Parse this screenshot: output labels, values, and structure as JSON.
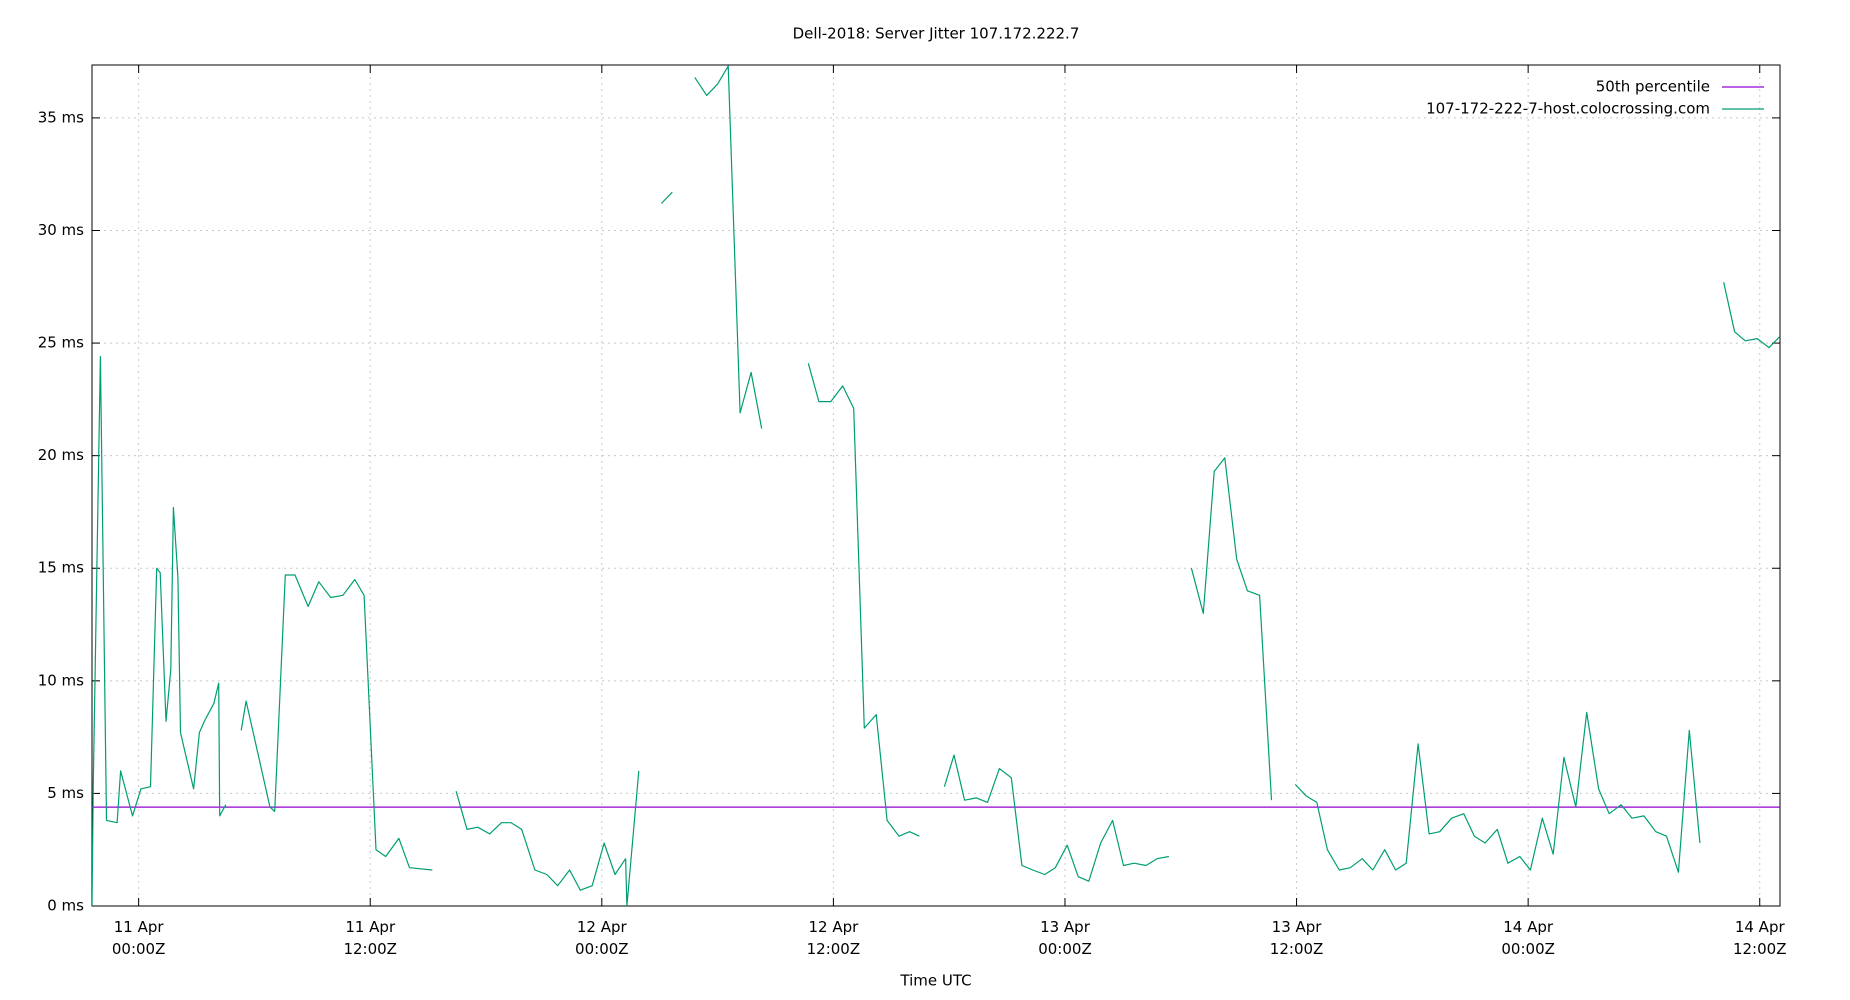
{
  "chart_data": {
    "type": "line",
    "title": "Dell-2018: Server Jitter 107.172.222.7",
    "x_label": "Time UTC",
    "xlim": [
      "10 Apr 21:35",
      "14 Apr 13:03"
    ],
    "xticks": [
      {
        "value": "11 Apr 00:00",
        "label": "11 Apr 00:00Z"
      },
      {
        "value": "11 Apr 12:00",
        "label": "11 Apr 12:00Z"
      },
      {
        "value": "12 Apr 00:00",
        "label": "12 Apr 00:00Z"
      },
      {
        "value": "12 Apr 12:00",
        "label": "12 Apr 12:00Z"
      },
      {
        "value": "13 Apr 00:00",
        "label": "13 Apr 00:00Z"
      },
      {
        "value": "13 Apr 12:00",
        "label": "13 Apr 12:00Z"
      },
      {
        "value": "14 Apr 00:00",
        "label": "14 Apr 00:00Z"
      },
      {
        "value": "14 Apr 12:00",
        "label": "14 Apr 12:00Z"
      }
    ],
    "ylim": [
      0,
      37.35
    ],
    "yticks": [
      {
        "value": 0,
        "label": "0 ms"
      },
      {
        "value": 5,
        "label": "5 ms"
      },
      {
        "value": 10,
        "label": "10 ms"
      },
      {
        "value": 15,
        "label": "15 ms"
      },
      {
        "value": 20,
        "label": "20 ms"
      },
      {
        "value": 25,
        "label": "25 ms"
      },
      {
        "value": 30,
        "label": "30 ms"
      },
      {
        "value": 35,
        "label": "35 ms"
      }
    ],
    "grid": true,
    "legend": "top-right",
    "reference_line": {
      "name": "50th percentile",
      "value": 4.39,
      "color": "#9400d3"
    },
    "series": [
      {
        "name": "107-172-222-7-host.colocrossing.com",
        "color": "#009e73",
        "x": [
          "10 Apr 21:35",
          "10 Apr 21:39",
          "10 Apr 22:01",
          "10 Apr 22:20",
          "10 Apr 22:53",
          "10 Apr 23:04",
          "10 Apr 23:41",
          "11 Apr 00:07",
          "11 Apr 00:37",
          "11 Apr 00:56",
          "11 Apr 01:07",
          "11 Apr 01:25",
          "11 Apr 01:40",
          "11 Apr 01:48",
          "11 Apr 02:02",
          "11 Apr 02:10",
          "11 Apr 02:51",
          "11 Apr 03:09",
          "11 Apr 03:24",
          "11 Apr 03:54",
          "11 Apr 04:09",
          "11 Apr 04:12",
          "11 Apr 04:31",
          null,
          "11 Apr 05:19",
          "11 Apr 05:34",
          "11 Apr 06:15",
          "11 Apr 06:48",
          "11 Apr 07:03",
          "11 Apr 07:36",
          "11 Apr 08:06",
          "11 Apr 08:47",
          "11 Apr 09:20",
          "11 Apr 09:57",
          "11 Apr 10:35",
          "11 Apr 11:12",
          "11 Apr 11:41",
          "11 Apr 12:18",
          "11 Apr 12:48",
          "11 Apr 13:29",
          "11 Apr 14:02",
          "11 Apr 15:13",
          null,
          "11 Apr 16:27",
          "11 Apr 17:01",
          "11 Apr 17:34",
          "11 Apr 18:11",
          "11 Apr 18:48",
          "11 Apr 19:18",
          "11 Apr 19:51",
          "11 Apr 20:32",
          "11 Apr 21:09",
          "11 Apr 21:43",
          "11 Apr 22:20",
          "11 Apr 22:53",
          "11 Apr 23:30",
          "12 Apr 00:07",
          "12 Apr 00:41",
          "12 Apr 01:14",
          "12 Apr 01:18",
          "12 Apr 01:55",
          null,
          "12 Apr 03:05",
          "12 Apr 03:39",
          null,
          "12 Apr 04:49",
          "12 Apr 05:26",
          "12 Apr 06:00",
          "12 Apr 06:33",
          "12 Apr 07:10",
          "12 Apr 07:44",
          "12 Apr 08:17",
          null,
          "12 Apr 10:42",
          "12 Apr 11:15",
          "12 Apr 11:52",
          "12 Apr 12:29",
          "12 Apr 13:03",
          "12 Apr 13:36",
          "12 Apr 14:13",
          "12 Apr 14:47",
          "12 Apr 15:24",
          "12 Apr 15:57",
          "12 Apr 16:27",
          null,
          "12 Apr 17:45",
          "12 Apr 18:15",
          "12 Apr 18:48",
          "12 Apr 19:25",
          "12 Apr 19:59",
          "12 Apr 20:36",
          "12 Apr 21:13",
          "12 Apr 21:46",
          "12 Apr 22:20",
          "12 Apr 22:57",
          "12 Apr 23:30",
          "13 Apr 00:07",
          "13 Apr 00:41",
          "13 Apr 01:14",
          "13 Apr 01:51",
          "13 Apr 02:28",
          "13 Apr 03:02",
          "13 Apr 03:35",
          "13 Apr 04:12",
          "13 Apr 04:46",
          "13 Apr 05:23",
          null,
          "13 Apr 06:33",
          "13 Apr 07:10",
          "13 Apr 07:44",
          "13 Apr 08:17",
          "13 Apr 08:54",
          "13 Apr 09:27",
          "13 Apr 10:05",
          "13 Apr 10:42",
          null,
          "13 Apr 11:56",
          "13 Apr 12:29",
          "13 Apr 13:03",
          "13 Apr 13:36",
          "13 Apr 14:13",
          "13 Apr 14:47",
          "13 Apr 15:24",
          "13 Apr 15:57",
          "13 Apr 16:34",
          "13 Apr 17:08",
          "13 Apr 17:41",
          "13 Apr 18:18",
          "13 Apr 18:52",
          "13 Apr 19:25",
          "13 Apr 20:02",
          "13 Apr 20:40",
          "13 Apr 21:13",
          "13 Apr 21:46",
          "13 Apr 22:24",
          "13 Apr 22:57",
          "13 Apr 23:34",
          "14 Apr 00:07",
          "14 Apr 00:44",
          "14 Apr 01:18",
          "14 Apr 01:51",
          "14 Apr 02:28",
          "14 Apr 03:02",
          "14 Apr 03:39",
          "14 Apr 04:12",
          "14 Apr 04:49",
          "14 Apr 05:23",
          "14 Apr 06:00",
          "14 Apr 06:37",
          "14 Apr 07:10",
          "14 Apr 07:47",
          "14 Apr 08:21",
          "14 Apr 08:54",
          null,
          "14 Apr 10:08",
          "14 Apr 10:42",
          "14 Apr 11:15",
          "14 Apr 11:52",
          "14 Apr 12:29",
          "14 Apr 13:03"
        ],
        "values": [
          0,
          5.5,
          24.4,
          3.8,
          3.7,
          6.0,
          4.0,
          5.2,
          5.3,
          15.0,
          14.8,
          8.2,
          10.5,
          17.7,
          14.6,
          7.7,
          5.2,
          7.7,
          8.2,
          9.0,
          9.9,
          4.0,
          4.5,
          null,
          7.8,
          9.1,
          6.5,
          4.4,
          4.2,
          14.7,
          14.7,
          13.3,
          14.4,
          13.7,
          13.8,
          14.5,
          13.8,
          2.5,
          2.2,
          3.0,
          1.7,
          1.6,
          null,
          5.1,
          3.4,
          3.5,
          3.2,
          3.7,
          3.7,
          3.4,
          1.6,
          1.4,
          0.9,
          1.6,
          0.7,
          0.9,
          2.8,
          1.4,
          2.1,
          0,
          6.0,
          null,
          31.2,
          31.7,
          null,
          36.8,
          36.0,
          36.5,
          37.3,
          21.9,
          23.7,
          21.2,
          null,
          24.1,
          22.4,
          22.4,
          23.1,
          22.1,
          7.9,
          8.5,
          3.8,
          3.1,
          3.3,
          3.1,
          null,
          5.3,
          6.7,
          4.7,
          4.8,
          4.6,
          6.1,
          5.7,
          1.8,
          1.6,
          1.4,
          1.7,
          2.7,
          1.3,
          1.1,
          2.8,
          3.8,
          1.8,
          1.9,
          1.8,
          2.1,
          2.2,
          null,
          15.0,
          13.0,
          19.3,
          19.9,
          15.4,
          14.0,
          13.8,
          4.7,
          null,
          5.4,
          4.9,
          4.6,
          2.5,
          1.6,
          1.7,
          2.1,
          1.6,
          2.5,
          1.6,
          1.9,
          7.2,
          3.2,
          3.3,
          3.9,
          4.1,
          3.1,
          2.8,
          3.4,
          1.9,
          2.2,
          1.6,
          3.9,
          2.3,
          6.6,
          4.4,
          8.6,
          5.2,
          4.1,
          4.5,
          3.9,
          4.0,
          3.3,
          3.1,
          1.5,
          7.8,
          2.8,
          null,
          27.7,
          25.5,
          25.1,
          25.2,
          24.8,
          25.3
        ]
      }
    ]
  }
}
